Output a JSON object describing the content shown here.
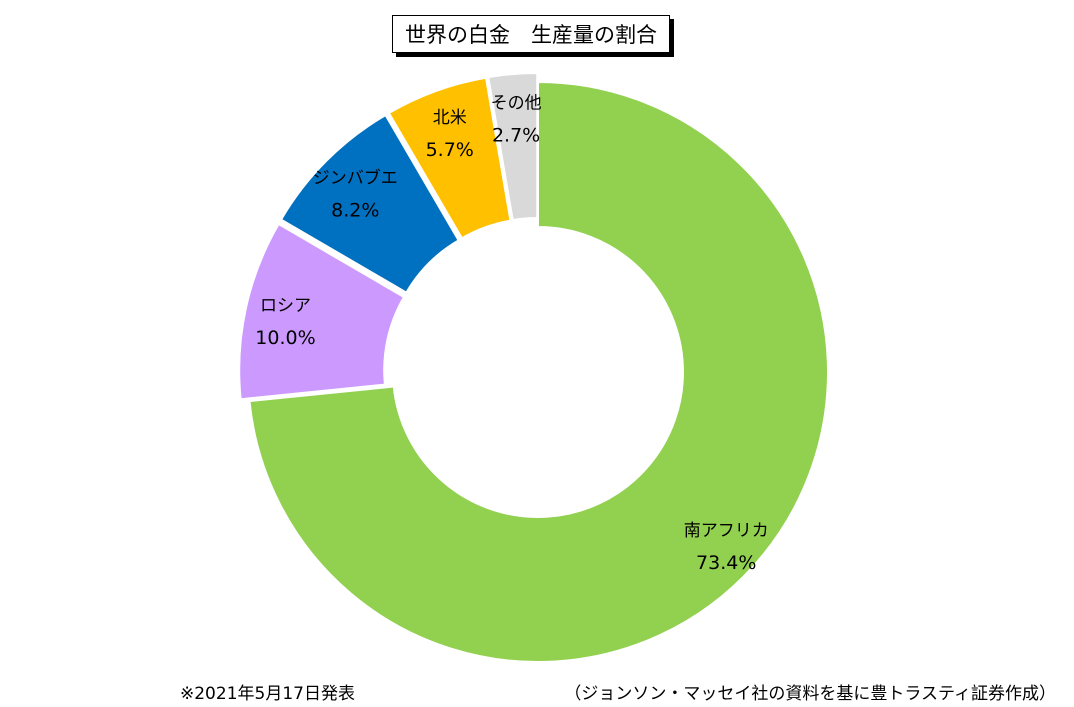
{
  "chart_data": {
    "type": "pie",
    "title": "世界の白金　生産量の割合",
    "unit": "%",
    "slices": [
      {
        "label": "南アフリカ",
        "value": 73.4,
        "value_label": "73.4%",
        "color": "#92d050",
        "exploded": false
      },
      {
        "label": "ロシア",
        "value": 10.0,
        "value_label": "10.0%",
        "color": "#cc99ff",
        "exploded": true
      },
      {
        "label": "ジンバブエ",
        "value": 8.2,
        "value_label": "8.2%",
        "color": "#0070c0",
        "exploded": true
      },
      {
        "label": "北米",
        "value": 5.7,
        "value_label": "5.7%",
        "color": "#ffc000",
        "exploded": true
      },
      {
        "label": "その他",
        "value": 2.7,
        "value_label": "2.7%",
        "color": "#d9d9d9",
        "exploded": true
      }
    ],
    "start_angle": "12 o'clock",
    "direction": "clockwise",
    "donut": true
  },
  "footnotes": {
    "left": "※2021年5月17日発表",
    "right": "（ジョンソン・マッセイ社の資料を基に豊トラスティ証券作成）"
  }
}
